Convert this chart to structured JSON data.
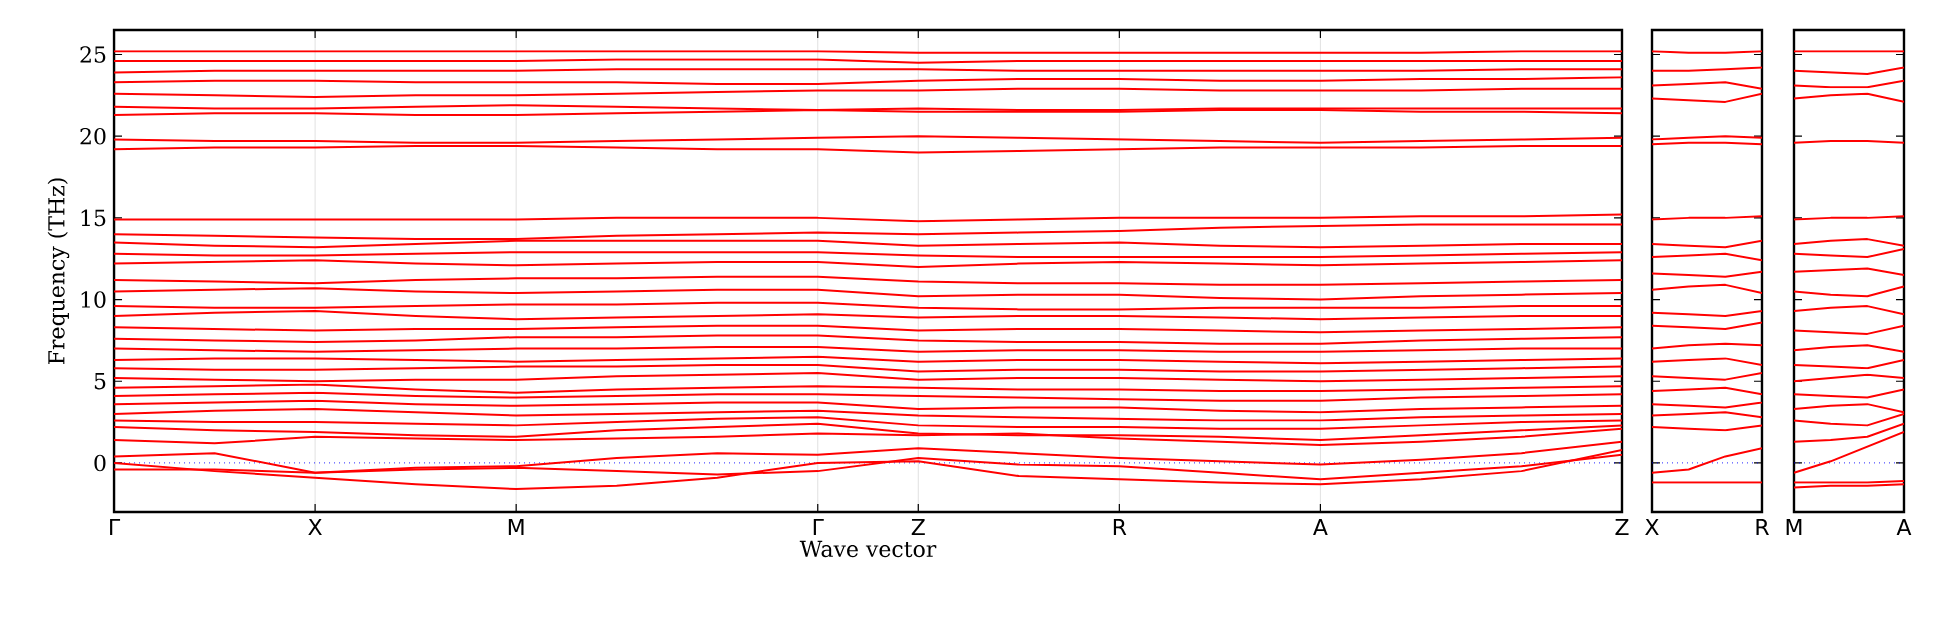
{
  "chart_data": [
    {
      "type": "line",
      "xlabel": "Wave vector",
      "ylabel": "Frequency (THz)",
      "color": "#ff0000",
      "grid": "x",
      "ylim": [
        -3,
        26.5
      ],
      "yticks": [
        0,
        5,
        10,
        15,
        20,
        25
      ],
      "categories": [
        "Γ",
        null,
        "X",
        null,
        "M",
        null,
        null,
        "Γ",
        "Z",
        null,
        "R",
        null,
        "A",
        null,
        null,
        "Z"
      ],
      "ref_lines": [
        {
          "axis": "y",
          "value": 0,
          "color": "#0000ff",
          "line_style": "dotted"
        }
      ],
      "series": [
        {
          "values": [
            0,
            -0.5,
            -0.9,
            -1.3,
            -1.6,
            -1.4,
            -0.9,
            0,
            0.1,
            -0.8,
            -1.0,
            -1.2,
            -1.3,
            -1.0,
            -0.5,
            0.8
          ]
        },
        {
          "values": [
            -0.4,
            -0.4,
            -0.6,
            -0.4,
            -0.3,
            -0.5,
            -0.7,
            -0.5,
            0.3,
            -0.1,
            -0.2,
            -0.6,
            -1.0,
            -0.6,
            -0.2,
            0.5
          ]
        },
        {
          "values": [
            0.4,
            0.6,
            -0.6,
            -0.3,
            -0.2,
            0.3,
            0.6,
            0.5,
            0.9,
            0.6,
            0.3,
            0.1,
            -0.1,
            0.2,
            0.6,
            1.3
          ]
        },
        {
          "values": [
            1.4,
            1.2,
            1.6,
            1.5,
            1.4,
            1.5,
            1.6,
            1.8,
            1.7,
            1.8,
            1.5,
            1.3,
            1.1,
            1.3,
            1.6,
            2.1
          ]
        },
        {
          "values": [
            2.2,
            2.0,
            1.9,
            1.7,
            1.6,
            2.0,
            2.2,
            2.4,
            1.8,
            1.7,
            1.7,
            1.6,
            1.4,
            1.7,
            2.0,
            2.3
          ]
        },
        {
          "values": [
            2.6,
            2.5,
            2.5,
            2.4,
            2.3,
            2.5,
            2.7,
            2.8,
            2.3,
            2.2,
            2.2,
            2.1,
            2.1,
            2.3,
            2.5,
            2.6
          ]
        },
        {
          "values": [
            3.0,
            3.2,
            3.3,
            3.1,
            2.9,
            3.0,
            3.1,
            3.2,
            2.9,
            2.8,
            2.7,
            2.6,
            2.6,
            2.8,
            2.9,
            3.0
          ]
        },
        {
          "values": [
            3.6,
            3.7,
            3.8,
            3.6,
            3.5,
            3.6,
            3.7,
            3.7,
            3.3,
            3.4,
            3.4,
            3.2,
            3.1,
            3.3,
            3.4,
            3.5
          ]
        },
        {
          "values": [
            4.1,
            4.2,
            4.3,
            4.1,
            4.0,
            4.1,
            4.2,
            4.2,
            4.1,
            4.0,
            3.9,
            3.8,
            3.8,
            4.0,
            4.1,
            4.2
          ]
        },
        {
          "values": [
            4.6,
            4.7,
            4.8,
            4.5,
            4.3,
            4.5,
            4.6,
            4.7,
            4.6,
            4.5,
            4.5,
            4.4,
            4.4,
            4.5,
            4.6,
            4.7
          ]
        },
        {
          "values": [
            5.2,
            5.1,
            5.0,
            5.1,
            5.1,
            5.3,
            5.4,
            5.5,
            5.1,
            5.2,
            5.2,
            5.1,
            5.0,
            5.1,
            5.2,
            5.3
          ]
        },
        {
          "values": [
            5.8,
            5.7,
            5.7,
            5.8,
            5.9,
            5.9,
            6.0,
            6.0,
            5.6,
            5.7,
            5.7,
            5.6,
            5.6,
            5.7,
            5.8,
            5.9
          ]
        },
        {
          "values": [
            6.3,
            6.4,
            6.4,
            6.3,
            6.2,
            6.3,
            6.4,
            6.5,
            6.2,
            6.3,
            6.3,
            6.2,
            6.1,
            6.2,
            6.3,
            6.4
          ]
        },
        {
          "values": [
            7.0,
            6.9,
            6.8,
            6.9,
            7.0,
            7.0,
            7.1,
            7.1,
            6.8,
            6.9,
            6.9,
            6.8,
            6.8,
            6.9,
            7.0,
            7.0
          ]
        },
        {
          "values": [
            7.6,
            7.5,
            7.4,
            7.5,
            7.7,
            7.7,
            7.8,
            7.8,
            7.5,
            7.4,
            7.4,
            7.3,
            7.3,
            7.5,
            7.6,
            7.7
          ]
        },
        {
          "values": [
            8.3,
            8.2,
            8.1,
            8.2,
            8.2,
            8.3,
            8.4,
            8.4,
            8.1,
            8.2,
            8.2,
            8.1,
            8.0,
            8.1,
            8.2,
            8.3
          ]
        },
        {
          "values": [
            9.0,
            9.2,
            9.3,
            9.0,
            8.8,
            8.9,
            9.0,
            9.1,
            8.9,
            9.0,
            9.0,
            8.9,
            8.8,
            8.9,
            9.0,
            9.0
          ]
        },
        {
          "values": [
            9.6,
            9.5,
            9.5,
            9.6,
            9.7,
            9.7,
            9.8,
            9.8,
            9.5,
            9.4,
            9.4,
            9.5,
            9.5,
            9.5,
            9.6,
            9.6
          ]
        },
        {
          "values": [
            10.5,
            10.6,
            10.7,
            10.5,
            10.4,
            10.5,
            10.6,
            10.6,
            10.2,
            10.3,
            10.3,
            10.1,
            10.0,
            10.2,
            10.3,
            10.4
          ]
        },
        {
          "values": [
            11.2,
            11.1,
            11.0,
            11.2,
            11.3,
            11.3,
            11.4,
            11.4,
            11.1,
            11.0,
            11.0,
            10.9,
            10.9,
            11.0,
            11.1,
            11.2
          ]
        },
        {
          "values": [
            12.2,
            12.3,
            12.4,
            12.2,
            12.1,
            12.2,
            12.3,
            12.3,
            12.0,
            12.2,
            12.3,
            12.2,
            12.1,
            12.2,
            12.3,
            12.4
          ]
        },
        {
          "values": [
            12.8,
            12.7,
            12.7,
            12.8,
            12.9,
            12.9,
            12.9,
            12.9,
            12.7,
            12.6,
            12.6,
            12.6,
            12.6,
            12.7,
            12.8,
            12.9
          ]
        },
        {
          "values": [
            13.5,
            13.3,
            13.2,
            13.4,
            13.6,
            13.6,
            13.6,
            13.6,
            13.3,
            13.4,
            13.5,
            13.3,
            13.2,
            13.3,
            13.4,
            13.4
          ]
        },
        {
          "values": [
            14.0,
            13.9,
            13.8,
            13.7,
            13.7,
            13.9,
            14.0,
            14.1,
            14.0,
            14.1,
            14.2,
            14.4,
            14.5,
            14.6,
            14.6,
            14.6
          ]
        },
        {
          "values": [
            14.9,
            14.9,
            14.9,
            14.9,
            14.9,
            15.0,
            15.0,
            15.0,
            14.8,
            14.9,
            15.0,
            15.0,
            15.0,
            15.1,
            15.1,
            15.2
          ]
        },
        {
          "values": [
            19.2,
            19.3,
            19.3,
            19.4,
            19.4,
            19.3,
            19.2,
            19.2,
            19.0,
            19.1,
            19.2,
            19.3,
            19.3,
            19.3,
            19.4,
            19.4
          ]
        },
        {
          "values": [
            19.8,
            19.7,
            19.7,
            19.6,
            19.6,
            19.7,
            19.8,
            19.9,
            20.0,
            19.9,
            19.8,
            19.7,
            19.6,
            19.7,
            19.8,
            19.9
          ]
        },
        {
          "values": [
            21.3,
            21.4,
            21.4,
            21.3,
            21.3,
            21.4,
            21.5,
            21.6,
            21.5,
            21.5,
            21.5,
            21.6,
            21.6,
            21.5,
            21.5,
            21.4
          ]
        },
        {
          "values": [
            21.8,
            21.7,
            21.7,
            21.8,
            21.9,
            21.8,
            21.7,
            21.6,
            21.7,
            21.6,
            21.6,
            21.7,
            21.7,
            21.7,
            21.7,
            21.7
          ]
        },
        {
          "values": [
            22.6,
            22.5,
            22.4,
            22.5,
            22.5,
            22.6,
            22.7,
            22.8,
            22.8,
            22.9,
            22.9,
            22.8,
            22.8,
            22.8,
            22.9,
            22.9
          ]
        },
        {
          "values": [
            23.3,
            23.4,
            23.4,
            23.3,
            23.3,
            23.3,
            23.2,
            23.2,
            23.4,
            23.5,
            23.5,
            23.4,
            23.4,
            23.5,
            23.5,
            23.6
          ]
        },
        {
          "values": [
            23.9,
            24.0,
            24.0,
            24.0,
            24.0,
            24.1,
            24.1,
            24.1,
            24.1,
            24.0,
            24.0,
            24.0,
            24.0,
            24.0,
            24.1,
            24.1
          ]
        },
        {
          "values": [
            24.6,
            24.6,
            24.6,
            24.6,
            24.6,
            24.7,
            24.7,
            24.7,
            24.5,
            24.6,
            24.6,
            24.6,
            24.6,
            24.6,
            24.6,
            24.6
          ]
        },
        {
          "values": [
            25.2,
            25.2,
            25.2,
            25.2,
            25.2,
            25.2,
            25.2,
            25.2,
            25.1,
            25.1,
            25.1,
            25.1,
            25.1,
            25.1,
            25.2,
            25.2
          ]
        }
      ]
    },
    {
      "type": "line",
      "color": "#ff0000",
      "tick_labels": "x",
      "ylim": [
        -3,
        26.5
      ],
      "yticks": [
        0,
        5,
        10,
        15,
        20,
        25
      ],
      "categories": [
        "X",
        null,
        null,
        "R"
      ],
      "ref_lines": [
        {
          "axis": "y",
          "value": 0,
          "color": "#0000ff",
          "line_style": "dotted"
        }
      ],
      "series": [
        {
          "values": [
            -1.2,
            -1.2,
            -1.2,
            -1.2
          ]
        },
        {
          "values": [
            -0.6,
            -0.4,
            0.4,
            0.9
          ]
        },
        {
          "values": [
            2.2,
            2.1,
            2.0,
            2.3
          ]
        },
        {
          "values": [
            2.9,
            3.0,
            3.1,
            2.8
          ]
        },
        {
          "values": [
            3.6,
            3.5,
            3.4,
            3.7
          ]
        },
        {
          "values": [
            4.4,
            4.5,
            4.6,
            4.2
          ]
        },
        {
          "values": [
            5.3,
            5.2,
            5.1,
            5.5
          ]
        },
        {
          "values": [
            6.2,
            6.3,
            6.4,
            6.0
          ]
        },
        {
          "values": [
            7.0,
            7.2,
            7.3,
            7.2
          ]
        },
        {
          "values": [
            8.4,
            8.3,
            8.2,
            8.6
          ]
        },
        {
          "values": [
            9.2,
            9.1,
            9.0,
            9.3
          ]
        },
        {
          "values": [
            10.6,
            10.8,
            10.9,
            10.4
          ]
        },
        {
          "values": [
            11.6,
            11.5,
            11.4,
            11.7
          ]
        },
        {
          "values": [
            12.6,
            12.7,
            12.8,
            12.4
          ]
        },
        {
          "values": [
            13.4,
            13.3,
            13.2,
            13.6
          ]
        },
        {
          "values": [
            14.9,
            15.0,
            15.0,
            15.1
          ]
        },
        {
          "values": [
            19.5,
            19.6,
            19.6,
            19.5
          ]
        },
        {
          "values": [
            19.8,
            19.9,
            20.0,
            19.9
          ]
        },
        {
          "values": [
            22.3,
            22.2,
            22.1,
            22.6
          ]
        },
        {
          "values": [
            23.1,
            23.2,
            23.3,
            22.9
          ]
        },
        {
          "values": [
            24.0,
            24.0,
            24.1,
            24.2
          ]
        },
        {
          "values": [
            25.2,
            25.1,
            25.1,
            25.2
          ]
        }
      ]
    },
    {
      "type": "line",
      "color": "#ff0000",
      "tick_labels": "x",
      "ylim": [
        -3,
        26.5
      ],
      "yticks": [
        0,
        5,
        10,
        15,
        20,
        25
      ],
      "categories": [
        "M",
        null,
        null,
        "A"
      ],
      "ref_lines": [
        {
          "axis": "y",
          "value": 0,
          "color": "#0000ff",
          "line_style": "dotted"
        }
      ],
      "series": [
        {
          "values": [
            -1.5,
            -1.4,
            -1.4,
            -1.3
          ]
        },
        {
          "values": [
            -1.2,
            -1.2,
            -1.2,
            -1.1
          ]
        },
        {
          "values": [
            -0.6,
            0.1,
            1.0,
            1.9
          ]
        },
        {
          "values": [
            1.3,
            1.4,
            1.6,
            2.4
          ]
        },
        {
          "values": [
            2.6,
            2.4,
            2.3,
            3.0
          ]
        },
        {
          "values": [
            3.3,
            3.5,
            3.6,
            3.1
          ]
        },
        {
          "values": [
            4.2,
            4.1,
            4.0,
            4.5
          ]
        },
        {
          "values": [
            5.0,
            5.2,
            5.4,
            5.2
          ]
        },
        {
          "values": [
            6.0,
            5.9,
            5.8,
            6.3
          ]
        },
        {
          "values": [
            6.9,
            7.1,
            7.2,
            6.8
          ]
        },
        {
          "values": [
            8.1,
            8.0,
            7.9,
            8.4
          ]
        },
        {
          "values": [
            9.3,
            9.5,
            9.6,
            9.1
          ]
        },
        {
          "values": [
            10.5,
            10.3,
            10.2,
            10.8
          ]
        },
        {
          "values": [
            11.7,
            11.8,
            11.9,
            11.5
          ]
        },
        {
          "values": [
            12.8,
            12.7,
            12.6,
            13.1
          ]
        },
        {
          "values": [
            13.4,
            13.6,
            13.7,
            13.3
          ]
        },
        {
          "values": [
            14.9,
            15.0,
            15.0,
            15.1
          ]
        },
        {
          "values": [
            19.6,
            19.7,
            19.7,
            19.6
          ]
        },
        {
          "values": [
            22.3,
            22.5,
            22.6,
            22.1
          ]
        },
        {
          "values": [
            23.1,
            23.0,
            23.0,
            23.4
          ]
        },
        {
          "values": [
            24.0,
            23.9,
            23.8,
            24.2
          ]
        },
        {
          "values": [
            25.2,
            25.2,
            25.2,
            25.2
          ]
        }
      ]
    }
  ]
}
